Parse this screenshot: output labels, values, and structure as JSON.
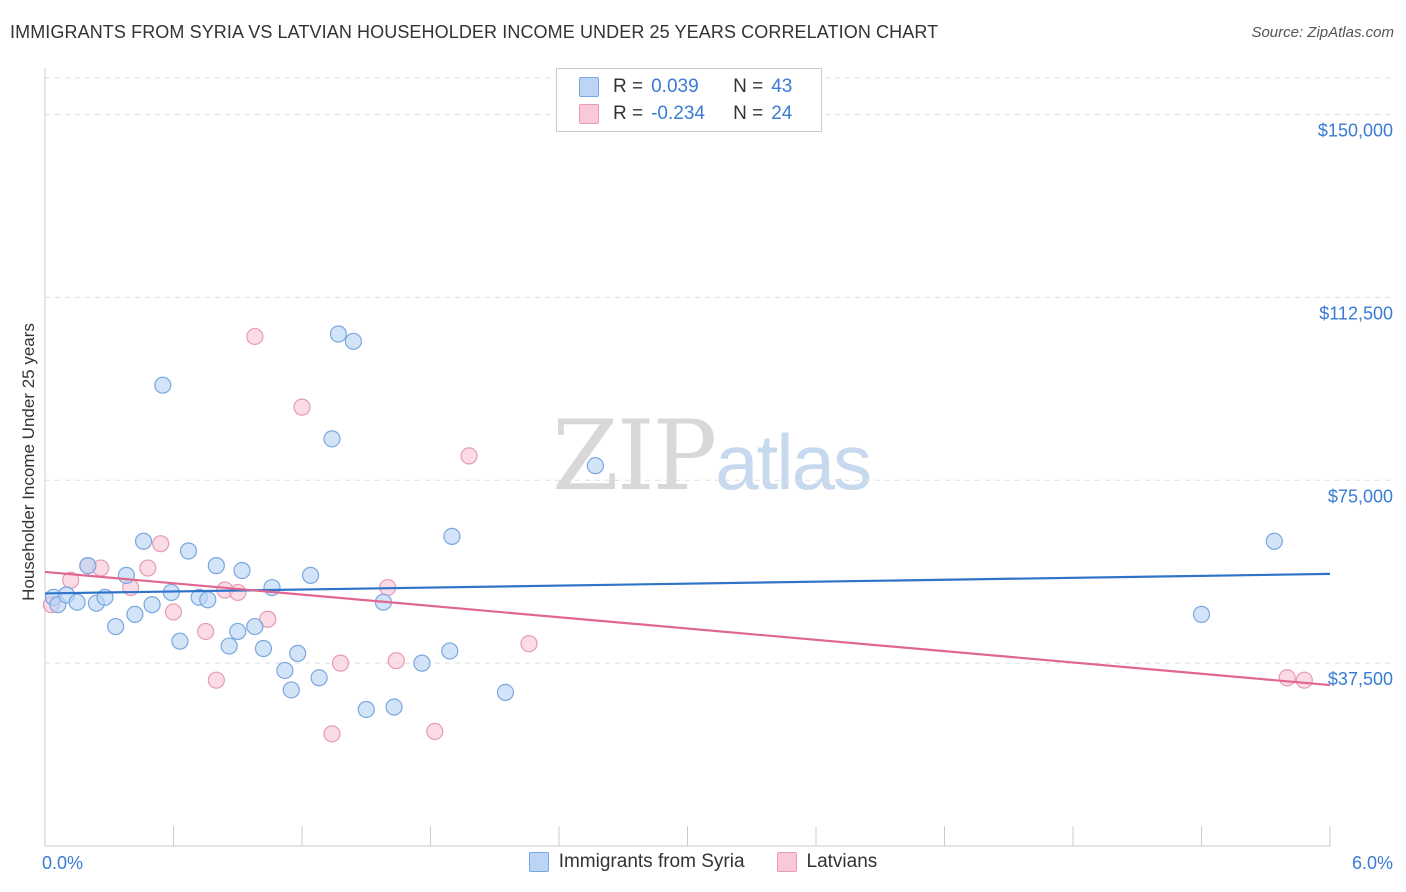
{
  "header": {
    "title": "IMMIGRANTS FROM SYRIA VS LATVIAN HOUSEHOLDER INCOME UNDER 25 YEARS CORRELATION CHART",
    "source": "Source: ZipAtlas.com"
  },
  "watermark": {
    "zip": "ZIP",
    "atlas": "atlas"
  },
  "legend": {
    "rows": [
      {
        "r_label": "R =",
        "r_value": "0.039",
        "n_label": "N =",
        "n_value": "43"
      },
      {
        "r_label": "R =",
        "r_value": "-0.234",
        "n_label": "N =",
        "n_value": "24"
      }
    ]
  },
  "colors": {
    "syria_fill": "#bcd4f5",
    "syria_stroke": "#7aa7e0",
    "syria_line": "#2f74c9",
    "latvian_fill": "#f9c9d8",
    "latvian_stroke": "#e79ab4",
    "latvian_line": "#e0678f",
    "axis_text": "#3a7bd5",
    "grid": "#dddddd"
  },
  "chart_data": {
    "type": "scatter",
    "title": "IMMIGRANTS FROM SYRIA VS LATVIAN HOUSEHOLDER INCOME UNDER 25 YEARS CORRELATION CHART",
    "xlabel": "",
    "ylabel": "Householder Income Under 25 years",
    "xlim": [
      0,
      6
    ],
    "ylim": [
      0,
      157500
    ],
    "x_tick_labels": [
      "0.0%",
      "6.0%"
    ],
    "y_ticks": [
      37500,
      75000,
      112500,
      150000
    ],
    "y_tick_labels": [
      "$37,500",
      "$75,000",
      "$112,500",
      "$150,000"
    ],
    "grid": true,
    "legend_position": "top-center",
    "series": [
      {
        "name": "Immigrants from Syria",
        "trend": [
          [
            0,
            51800
          ],
          [
            6,
            55800
          ]
        ],
        "points": [
          [
            0.04,
            51000
          ],
          [
            0.06,
            49500
          ],
          [
            0.1,
            51500
          ],
          [
            0.15,
            50000
          ],
          [
            0.24,
            49800
          ],
          [
            0.2,
            57500
          ],
          [
            0.28,
            51000
          ],
          [
            0.33,
            45000
          ],
          [
            0.38,
            55500
          ],
          [
            0.42,
            47500
          ],
          [
            0.46,
            62500
          ],
          [
            0.5,
            49500
          ],
          [
            0.55,
            94500
          ],
          [
            0.59,
            52000
          ],
          [
            0.63,
            42000
          ],
          [
            0.67,
            60500
          ],
          [
            0.72,
            51000
          ],
          [
            0.76,
            50500
          ],
          [
            0.8,
            57500
          ],
          [
            0.86,
            41000
          ],
          [
            0.9,
            44000
          ],
          [
            0.92,
            56500
          ],
          [
            0.98,
            45000
          ],
          [
            1.02,
            40500
          ],
          [
            1.06,
            53000
          ],
          [
            1.12,
            36000
          ],
          [
            1.15,
            32000
          ],
          [
            1.18,
            39500
          ],
          [
            1.24,
            55500
          ],
          [
            1.28,
            34500
          ],
          [
            1.34,
            83500
          ],
          [
            1.37,
            105000
          ],
          [
            1.44,
            103500
          ],
          [
            1.5,
            28000
          ],
          [
            1.58,
            50000
          ],
          [
            1.63,
            28500
          ],
          [
            1.76,
            37500
          ],
          [
            1.89,
            40000
          ],
          [
            1.9,
            63500
          ],
          [
            2.15,
            31500
          ],
          [
            2.57,
            78000
          ],
          [
            5.4,
            47500
          ],
          [
            5.74,
            62500
          ]
        ]
      },
      {
        "name": "Latvians",
        "trend": [
          [
            0,
            56200
          ],
          [
            6,
            33000
          ]
        ],
        "points": [
          [
            0.03,
            49500
          ],
          [
            0.12,
            54500
          ],
          [
            0.2,
            57500
          ],
          [
            0.26,
            57000
          ],
          [
            0.4,
            53000
          ],
          [
            0.48,
            57000
          ],
          [
            0.54,
            62000
          ],
          [
            0.6,
            48000
          ],
          [
            0.75,
            44000
          ],
          [
            0.8,
            34000
          ],
          [
            0.84,
            52500
          ],
          [
            0.9,
            52000
          ],
          [
            0.98,
            104500
          ],
          [
            1.04,
            46500
          ],
          [
            1.2,
            90000
          ],
          [
            1.34,
            23000
          ],
          [
            1.38,
            37500
          ],
          [
            1.6,
            53000
          ],
          [
            1.64,
            38000
          ],
          [
            1.82,
            23500
          ],
          [
            1.98,
            80000
          ],
          [
            2.26,
            41500
          ],
          [
            5.8,
            34500
          ],
          [
            5.88,
            34000
          ]
        ]
      }
    ]
  }
}
